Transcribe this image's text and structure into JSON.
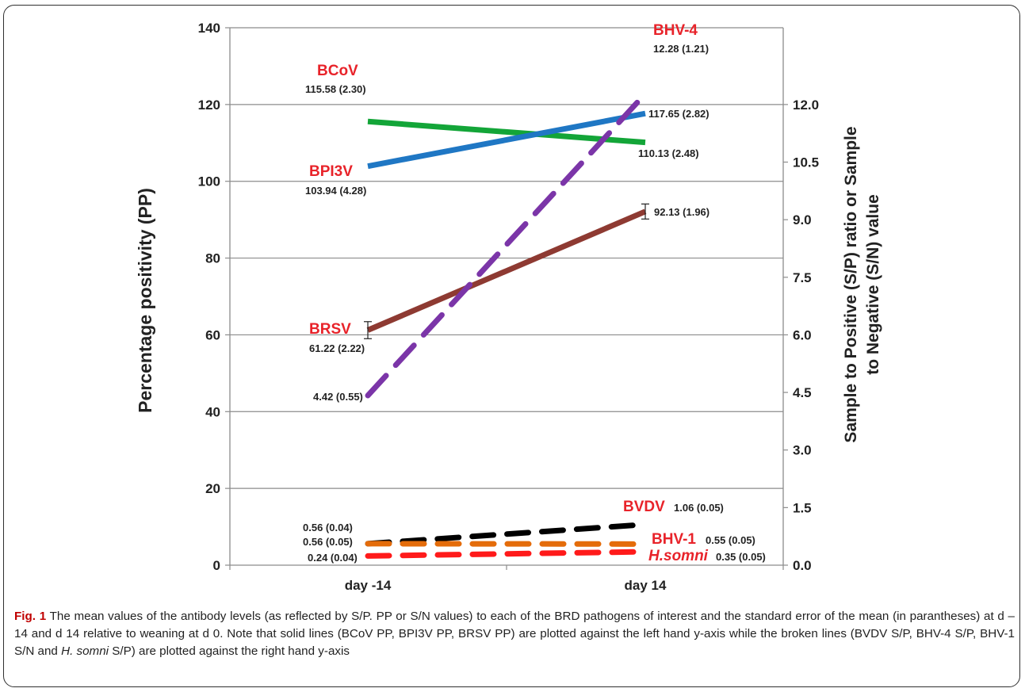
{
  "chart_data": {
    "type": "line",
    "categories": [
      "day -14",
      "day 14"
    ],
    "left_axis": {
      "label": "Percentage positivity (PP)",
      "ylim": [
        0,
        140
      ],
      "ticks": [
        "0",
        "20",
        "40",
        "60",
        "80",
        "100",
        "120",
        "140"
      ],
      "tick_values": [
        0,
        20,
        40,
        60,
        80,
        100,
        120,
        140
      ]
    },
    "right_axis": {
      "label_line1": "Sample to Positive (S/P) ratio or Sample",
      "label_line2": "to Negative (S/N) value",
      "ylim": [
        0,
        14
      ],
      "ticks": [
        "0.0",
        "1.5",
        "3.0",
        "4.5",
        "6.0",
        "7.5",
        "9.0",
        "10.5",
        "12.0"
      ],
      "tick_values": [
        0,
        1.5,
        3,
        4.5,
        6,
        7.5,
        9,
        10.5,
        12
      ]
    },
    "grid": true,
    "series": [
      {
        "name": "BCoV",
        "axis": "left",
        "style": "solid",
        "color": "#13a538",
        "values": [
          115.58,
          110.13
        ],
        "labels": [
          "115.58 (2.30)",
          "110.13 (2.48)"
        ]
      },
      {
        "name": "BPI3V",
        "axis": "left",
        "style": "solid",
        "color": "#1f77c4",
        "values": [
          103.94,
          117.65
        ],
        "labels": [
          "103.94 (4.28)",
          "117.65 (2.82)"
        ]
      },
      {
        "name": "BRSV",
        "axis": "left",
        "style": "solid",
        "color": "#8e3a32",
        "values": [
          61.22,
          92.13
        ],
        "labels": [
          "61.22 (2.22)",
          "92.13 (1.96)"
        ],
        "error": [
          2.22,
          1.96
        ]
      },
      {
        "name": "BHV-4",
        "axis": "right",
        "style": "dashed",
        "color": "#7b35a8",
        "values": [
          4.42,
          12.28
        ],
        "labels": [
          "4.42 (0.55)",
          "12.28 (1.21)"
        ]
      },
      {
        "name": "BVDV",
        "axis": "right",
        "style": "dashed",
        "color": "#000000",
        "values": [
          0.56,
          1.06
        ],
        "labels": [
          "0.56 (0.04)",
          "1.06 (0.05)"
        ]
      },
      {
        "name": "BHV-1",
        "axis": "right",
        "style": "dashed",
        "color": "#e46c0a",
        "values": [
          0.56,
          0.55
        ],
        "labels": [
          "0.56 (0.05)",
          "0.55 (0.05)"
        ]
      },
      {
        "name": "H.somni",
        "axis": "right",
        "style": "dashed",
        "color": "#ff1a1a",
        "values": [
          0.24,
          0.35
        ],
        "labels": [
          "0.24 (0.04)",
          "0.35 (0.05)"
        ]
      }
    ]
  },
  "caption": {
    "fig_label": "Fig. 1",
    "text_part1": " The mean values of the antibody levels (as reflected by S/P. PP or S/N values) to each of the BRD pathogens of interest and the standard error of the mean (in parantheses) at d – 14 and d 14 relative to weaning at d 0. Note that solid lines (BCoV PP, BPI3V PP, BRSV PP) are plotted against the left hand y-axis while the broken lines (BVDV S/P, BHV-4 S/P, BHV-1 S/N and ",
    "italic": "H. somni",
    "text_part2": " S/P) are plotted against the right hand y-axis"
  }
}
